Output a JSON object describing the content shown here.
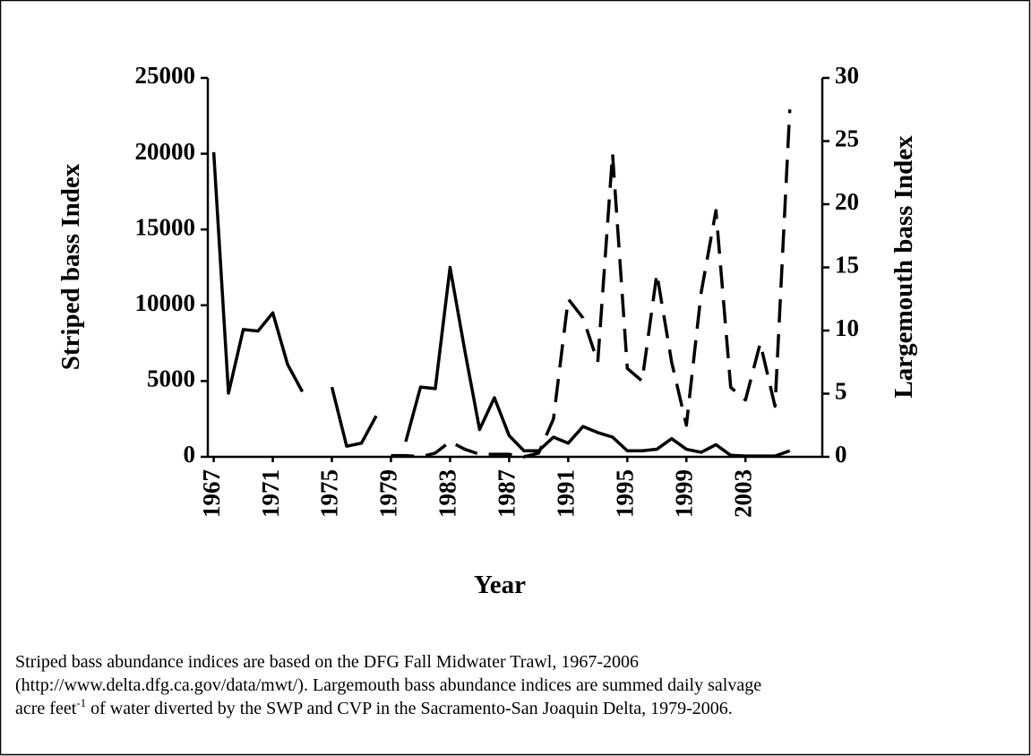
{
  "chart_data": {
    "type": "line",
    "x_label": "Year",
    "y_label": "Striped bass Index",
    "y2_label": "Largemouth bass Index",
    "x": [
      1967,
      1968,
      1969,
      1970,
      1971,
      1972,
      1973,
      1974,
      1975,
      1976,
      1977,
      1978,
      1979,
      1980,
      1981,
      1982,
      1983,
      1984,
      1985,
      1986,
      1987,
      1988,
      1989,
      1990,
      1991,
      1992,
      1993,
      1994,
      1995,
      1996,
      1997,
      1998,
      1999,
      2000,
      2001,
      2002,
      2003,
      2004,
      2005,
      2006
    ],
    "xlim": [
      1966.6,
      2008.2
    ],
    "xticks": [
      1967,
      1971,
      1975,
      1979,
      1983,
      1987,
      1991,
      1995,
      1999,
      2003
    ],
    "ylim": [
      0,
      25000
    ],
    "yticks": [
      0,
      5000,
      10000,
      15000,
      20000,
      25000
    ],
    "y2lim": [
      0,
      30
    ],
    "y2ticks": [
      0,
      5,
      10,
      15,
      20,
      25,
      30
    ],
    "series": [
      {
        "color": "#000000",
        "dash": "solid",
        "axis": "y",
        "values": [
          20100,
          4200,
          8400,
          8300,
          9500,
          6100,
          4300,
          null,
          4600,
          700,
          900,
          2700,
          null,
          1000,
          4600,
          4500,
          12500,
          7000,
          1800,
          3900,
          1400,
          400,
          400,
          1300,
          900,
          2000,
          1600,
          1300,
          400,
          400,
          500,
          1200,
          500,
          300,
          800,
          100,
          50,
          50,
          50,
          400
        ]
      },
      {
        "color": "#000000",
        "dash": "dashed",
        "axis": "y2",
        "values": [
          null,
          null,
          null,
          null,
          null,
          null,
          null,
          null,
          null,
          null,
          null,
          null,
          0.1,
          0.1,
          0,
          0.3,
          1.2,
          0.6,
          0.2,
          0.2,
          0.2,
          0,
          0.3,
          3,
          12.5,
          11,
          7.5,
          24,
          7,
          6,
          14.5,
          7.5,
          2.5,
          13,
          19.5,
          5.5,
          4.5,
          9,
          4,
          27.5
        ]
      }
    ]
  },
  "caption": {
    "line1": "Striped bass abundance indices are based on the DFG Fall Midwater Trawl, 1967-2006",
    "line2": "(http://www.delta.dfg.ca.gov/data/mwt/).  Largemouth bass abundance indices are summed daily salvage",
    "line3_start": "acre feet",
    "line3_sup": "-1",
    "line3_end": " of water diverted by the SWP and CVP in the Sacramento-San Joaquin Delta, 1979-2006."
  }
}
